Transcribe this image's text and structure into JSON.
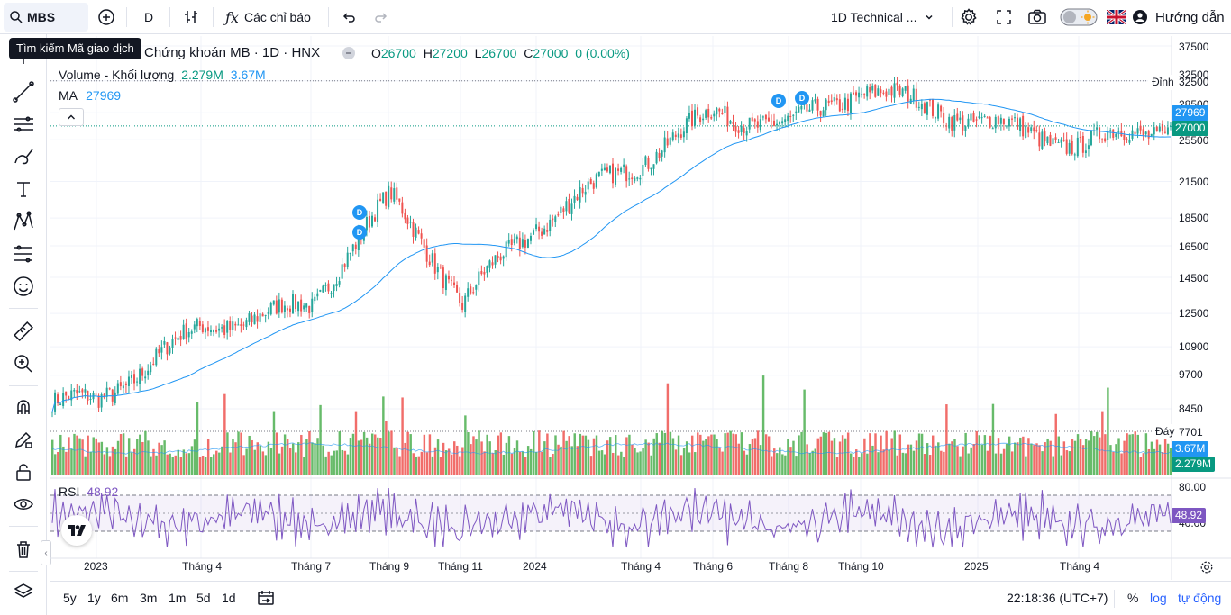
{
  "toolbar": {
    "symbol": "MBS",
    "interval": "D",
    "indicators_label": "Các chỉ báo",
    "layout_name": "1D Technical ...",
    "guide_label": "Hướng dẫn",
    "tooltip": "Tìm kiếm Mã giao dịch"
  },
  "chart": {
    "title": "Chứng khoán MB · 1D · HNX",
    "ohlc": {
      "o_label": "O",
      "o": "26700",
      "h_label": "H",
      "h": "27200",
      "l_label": "L",
      "l": "26700",
      "c_label": "C",
      "c": "27000",
      "change": "0 (0.00%)"
    },
    "volume_legend": {
      "name": "Volume - Khối lượng",
      "v1": "2.279M",
      "v2": "3.67M"
    },
    "ma_legend": {
      "name": "MA",
      "value": "27969"
    },
    "rsi_legend": {
      "name": "RSI",
      "value": "48.92"
    },
    "price_axis": [
      "37500",
      "32500",
      "28500",
      "25500",
      "21500",
      "18500",
      "16500",
      "14500",
      "12500",
      "10900",
      "9700",
      "8450",
      "7701"
    ],
    "rsi_axis": [
      "80.00",
      "40.00"
    ],
    "tags": {
      "dinh": "Đỉnh",
      "dinh_value": "32500",
      "ma": "27969",
      "last": "27000",
      "day": "Đáy",
      "day_value": "7701",
      "vol_ma": "3.67M",
      "vol": "2.279M",
      "rsi": "48.92"
    },
    "dividend_marker": "D",
    "x_axis": [
      "2023",
      "Tháng 4",
      "Tháng 7",
      "Tháng 9",
      "Tháng 11",
      "2024",
      "Tháng 4",
      "Tháng 6",
      "Tháng 8",
      "Tháng 10",
      "2025",
      "Tháng 4"
    ],
    "colors": {
      "up": "#26a69a",
      "up_bar": "#4caf50",
      "down": "#ef5350",
      "ma": "#2196f3",
      "rsi": "#7e57c2"
    }
  },
  "bottom": {
    "ranges": [
      "5y",
      "1y",
      "6m",
      "3m",
      "1m",
      "5d",
      "1d"
    ],
    "time": "22:18:36 (UTC+7)",
    "percent": "%",
    "log": "log",
    "auto": "tự động"
  },
  "chart_data": {
    "type": "candlestick",
    "title": "Chứng khoán MB · 1D · HNX",
    "y_axis_ticks": [
      37500,
      32500,
      28500,
      25500,
      21500,
      18500,
      16500,
      14500,
      12500,
      10900,
      9700,
      8450
    ],
    "last": {
      "open": 26700,
      "high": 27200,
      "low": 26700,
      "close": 27000
    },
    "ma": 27969,
    "highest": 32500,
    "lowest": 7701,
    "approx_close_path": [
      {
        "x": "2023",
        "close": 8700
      },
      {
        "x": "Tháng 4",
        "close": 11800
      },
      {
        "x": "Tháng 7",
        "close": 12900
      },
      {
        "x": "Tháng 9",
        "close": 20000
      },
      {
        "x": "Tháng 11",
        "close": 13000
      },
      {
        "x": "2024",
        "close": 18000
      },
      {
        "x": "Tháng 4",
        "close": 23500
      },
      {
        "x": "Tháng 6",
        "close": 28500
      },
      {
        "x": "Tháng 8",
        "close": 27000
      },
      {
        "x": "Tháng 10",
        "close": 31500
      },
      {
        "x": "2025",
        "close": 27500
      },
      {
        "x": "Tháng 4",
        "close": 25000
      },
      {
        "x": "end",
        "close": 27000
      }
    ],
    "volume": {
      "last": 2279000,
      "ma": 3670000
    },
    "rsi": {
      "last": 48.92,
      "upper": 80,
      "lower": 40
    }
  }
}
